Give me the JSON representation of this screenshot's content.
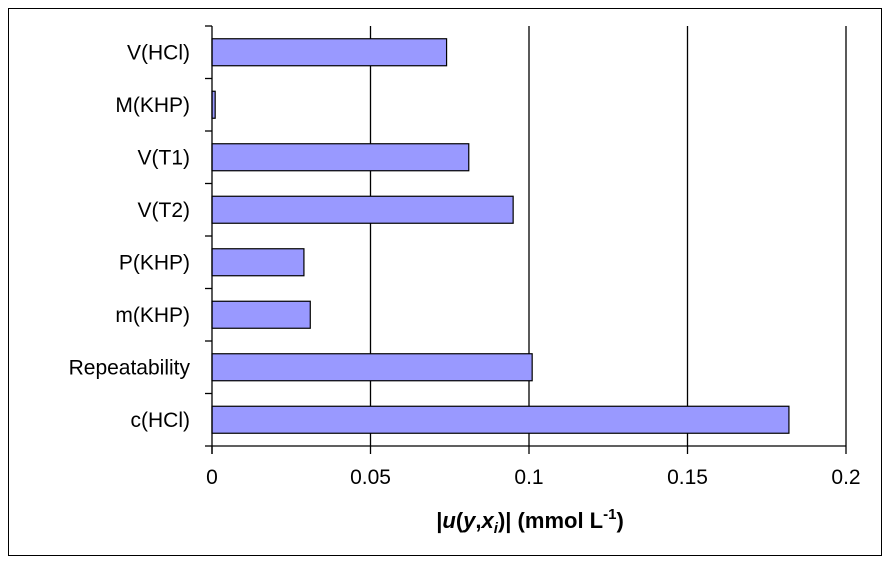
{
  "chart_data": {
    "type": "bar",
    "orientation": "horizontal",
    "categories": [
      "V(HCl)",
      "M(KHP)",
      "V(T1)",
      "V(T2)",
      "P(KHP)",
      "m(KHP)",
      "Repeatability",
      "c(HCl)"
    ],
    "values": [
      0.074,
      0.001,
      0.081,
      0.095,
      0.029,
      0.031,
      0.101,
      0.182
    ],
    "xlabel": {
      "open": "|",
      "u": "u",
      "paren_open": "(",
      "y": "y",
      "comma": ",",
      "x": "x",
      "sub": "i",
      "paren_close": ")|",
      "unit": " (mmol L",
      "sup": "-1",
      "close": ")"
    },
    "xticks": [
      "0",
      "0.05",
      "0.1",
      "0.15",
      "0.2"
    ],
    "xlim": [
      0,
      0.2
    ],
    "grid": "vertical",
    "legend": "none",
    "colors": {
      "bar_fill": "#9999ff",
      "bar_stroke": "#000000",
      "grid": "#000000"
    }
  }
}
